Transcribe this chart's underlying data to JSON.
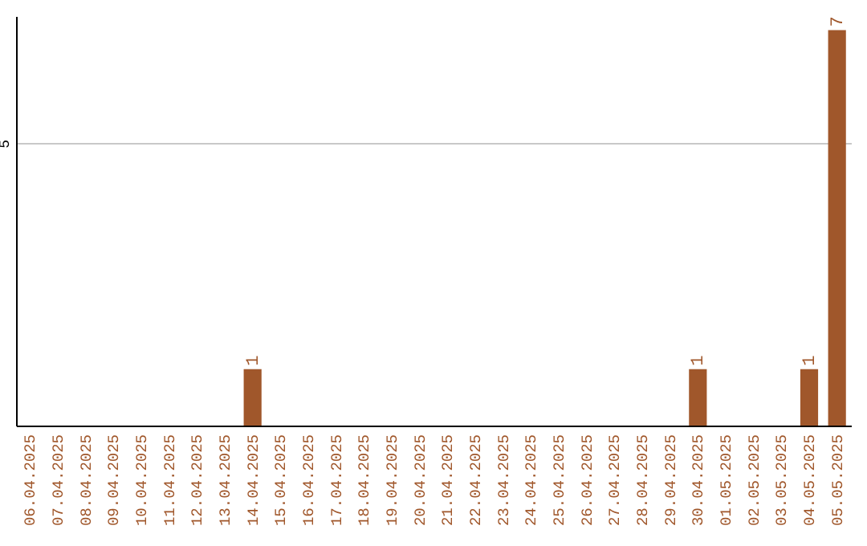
{
  "chart_data": {
    "type": "bar",
    "categories": [
      "06.04.2025",
      "07.04.2025",
      "08.04.2025",
      "09.04.2025",
      "10.04.2025",
      "11.04.2025",
      "12.04.2025",
      "13.04.2025",
      "14.04.2025",
      "15.04.2025",
      "16.04.2025",
      "17.04.2025",
      "18.04.2025",
      "19.04.2025",
      "20.04.2025",
      "21.04.2025",
      "22.04.2025",
      "23.04.2025",
      "24.04.2025",
      "25.04.2025",
      "26.04.2025",
      "27.04.2025",
      "28.04.2025",
      "29.04.2025",
      "30.04.2025",
      "01.05.2025",
      "02.05.2025",
      "03.05.2025",
      "04.05.2025",
      "05.05.2025"
    ],
    "values": [
      0,
      0,
      0,
      0,
      0,
      0,
      0,
      0,
      1,
      0,
      0,
      0,
      0,
      0,
      0,
      0,
      0,
      0,
      0,
      0,
      0,
      0,
      0,
      0,
      1,
      0,
      0,
      0,
      1,
      7
    ],
    "color": "#a0572b",
    "value_labels": [
      null,
      null,
      null,
      null,
      null,
      null,
      null,
      null,
      "1",
      null,
      null,
      null,
      null,
      null,
      null,
      null,
      null,
      null,
      null,
      null,
      null,
      null,
      null,
      null,
      "1",
      null,
      null,
      null,
      "1",
      "7"
    ],
    "ylim": [
      0,
      7.25
    ],
    "yticks": [
      5
    ],
    "grid": "y"
  }
}
